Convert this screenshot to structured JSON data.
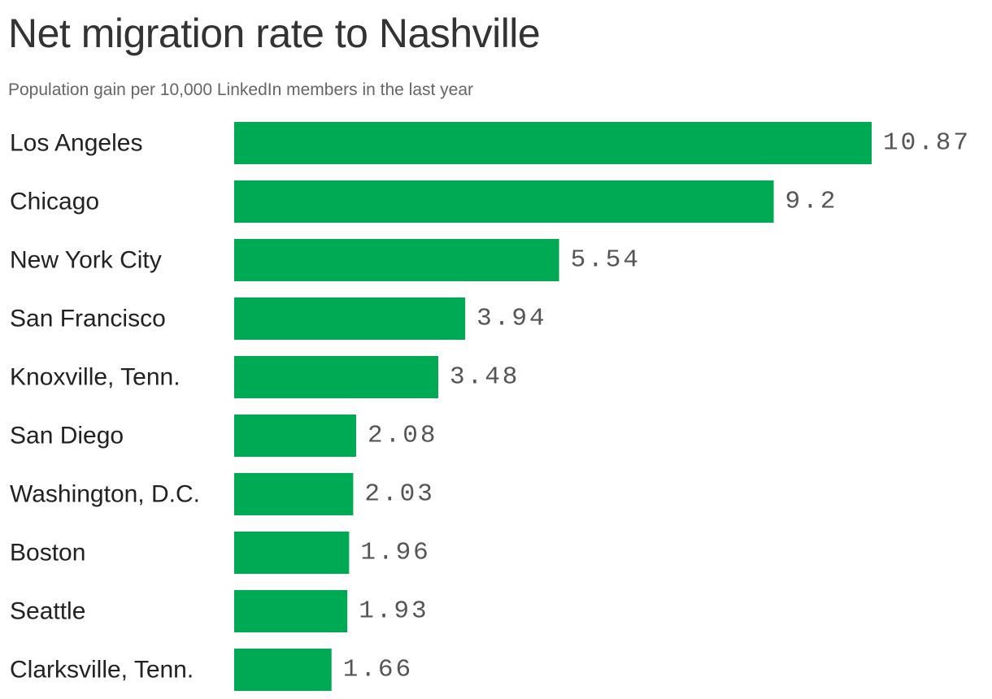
{
  "chart_data": {
    "type": "bar",
    "orientation": "horizontal",
    "title": "Net migration rate to Nashville",
    "subtitle": "Population gain per 10,000 LinkedIn members in the last year",
    "categories": [
      "Los Angeles",
      "Chicago",
      "New York City",
      "San Francisco",
      "Knoxville, Tenn.",
      "San Diego",
      "Washington, D.C.",
      "Boston",
      "Seattle",
      "Clarksville, Tenn."
    ],
    "values": [
      10.87,
      9.2,
      5.54,
      3.94,
      3.48,
      2.08,
      2.03,
      1.96,
      1.93,
      1.66
    ],
    "value_labels": [
      "10.87",
      "9.2",
      "5.54",
      "3.94",
      "3.48",
      "2.08",
      "2.03",
      "1.96",
      "1.93",
      "1.66"
    ],
    "xlim": [
      0,
      10.87
    ],
    "grid": false,
    "legend": "none",
    "bar_color": "#00aa55"
  }
}
